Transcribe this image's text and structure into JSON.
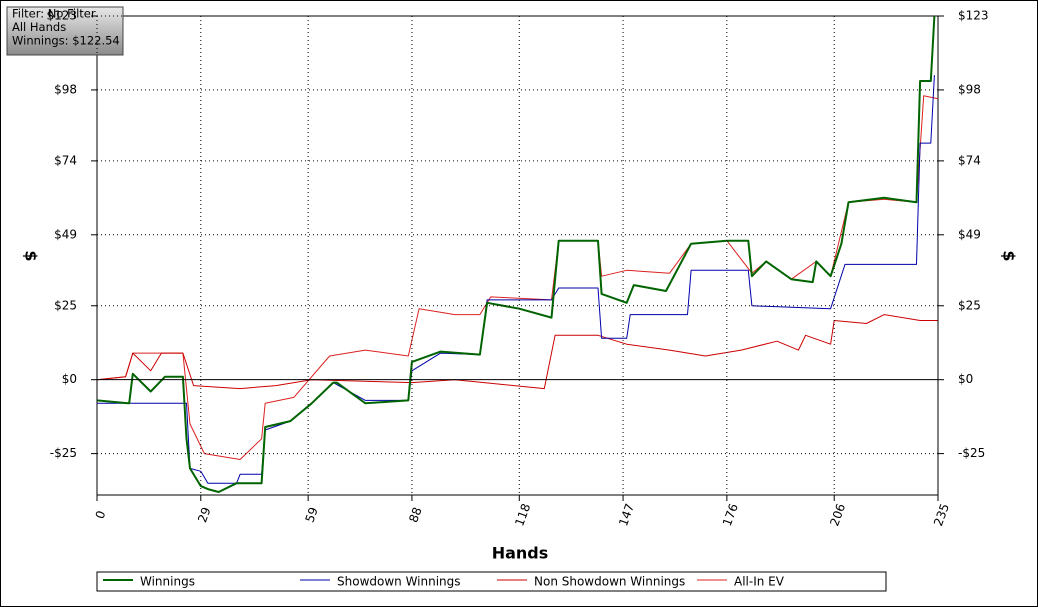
{
  "chart_data": {
    "type": "line",
    "annotations": [
      "Filter: No Filter",
      "All Hands",
      "Winnings: $122.54"
    ],
    "xlabel": "Hands",
    "ylabel": "$",
    "y2label": "$",
    "xlim": [
      0,
      235
    ],
    "xticks": [
      0,
      29,
      59,
      88,
      118,
      147,
      176,
      206,
      235
    ],
    "ylim": [
      -39,
      123
    ],
    "yticks": [
      {
        "value": 123,
        "label": "$123"
      },
      {
        "value": 98,
        "label": "$98"
      },
      {
        "value": 74,
        "label": "$74"
      },
      {
        "value": 49,
        "label": "$49"
      },
      {
        "value": 25,
        "label": "$25"
      },
      {
        "value": 0,
        "label": "$0"
      },
      {
        "value": -25,
        "label": "-$25"
      }
    ],
    "y2lim": [
      -39,
      123
    ],
    "y2ticks": [
      {
        "value": 123,
        "label": "$123"
      },
      {
        "value": 98,
        "label": "$98"
      },
      {
        "value": 74,
        "label": "$74"
      },
      {
        "value": 49,
        "label": "$49"
      },
      {
        "value": 25,
        "label": "$25"
      },
      {
        "value": 0,
        "label": "$0"
      },
      {
        "value": -25,
        "label": "-$25"
      }
    ],
    "grid": true,
    "legend": "bottom",
    "series": [
      {
        "name": "Winnings",
        "color": "#006400",
        "line_width": 2,
        "x": [
          0,
          9,
          10,
          15,
          19,
          24,
          25,
          26,
          29,
          31,
          34,
          39,
          46,
          47,
          54,
          60,
          66,
          67,
          75,
          87,
          88,
          96,
          107,
          109,
          118,
          127,
          129,
          140,
          141,
          148,
          150,
          159,
          166,
          176,
          182,
          183,
          187,
          194,
          200,
          201,
          205,
          208,
          210,
          220,
          229,
          230,
          233,
          234
        ],
        "values": [
          -7,
          -8,
          2,
          -4,
          1,
          1,
          -20,
          -30,
          -36,
          -37,
          -38,
          -35,
          -35,
          -16,
          -14,
          -8,
          -1,
          -1,
          -8,
          -7,
          6,
          9.5,
          8.5,
          26,
          24,
          21,
          47,
          47,
          29,
          26,
          32,
          30,
          46,
          47,
          47,
          35,
          40,
          34,
          33,
          40,
          35,
          46,
          60,
          61.5,
          60,
          101,
          101,
          123
        ]
      },
      {
        "name": "Showdown Winnings",
        "color": "#0000aa",
        "line_width": 1,
        "x": [
          0,
          25,
          26,
          29,
          31,
          39,
          40,
          46,
          47,
          54,
          60,
          66,
          75,
          87,
          88,
          96,
          107,
          109,
          127,
          129,
          140,
          141,
          148,
          149,
          165,
          166,
          182,
          183,
          205,
          209,
          229,
          230,
          233,
          234
        ],
        "values": [
          -8,
          -8,
          -30,
          -31,
          -35,
          -35,
          -32,
          -32,
          -17,
          -14,
          -8,
          -1,
          -7,
          -7,
          3,
          9,
          8.5,
          27,
          27,
          31,
          31,
          14,
          14,
          22,
          22,
          37,
          37,
          25,
          24,
          39,
          39,
          80,
          80,
          103
        ]
      },
      {
        "name": "Non Showdown Winnings",
        "color": "#cc0000",
        "line_width": 1,
        "x": [
          0,
          8,
          10,
          15,
          18,
          24,
          27,
          40,
          50,
          60,
          88,
          100,
          125,
          128,
          140,
          148,
          160,
          170,
          180,
          190,
          196,
          198,
          205,
          206,
          215,
          220,
          230,
          235
        ],
        "values": [
          0,
          1,
          9,
          3,
          9,
          9,
          -2,
          -3,
          -2,
          0,
          -1,
          0,
          -3,
          15,
          15,
          12,
          10,
          8,
          10,
          13,
          10,
          15,
          12,
          20,
          19,
          22,
          20,
          20
        ]
      },
      {
        "name": "All-In EV",
        "color": "#dd2020",
        "line_width": 1,
        "x": [
          0,
          8,
          10,
          24,
          26,
          30,
          40,
          46,
          47,
          55,
          65,
          75,
          87,
          90,
          100,
          107,
          110,
          127,
          129,
          140,
          141,
          148,
          160,
          166,
          176,
          183,
          187,
          194,
          201,
          205,
          210,
          220,
          229,
          231,
          235
        ],
        "values": [
          0,
          1,
          9,
          9,
          -15,
          -25,
          -27,
          -20,
          -8,
          -6,
          8,
          10,
          8,
          24,
          22,
          22,
          28,
          27,
          47,
          47,
          35,
          37,
          36,
          46,
          47,
          36,
          40,
          34,
          40,
          35,
          60,
          61,
          60,
          96,
          95
        ]
      }
    ]
  }
}
